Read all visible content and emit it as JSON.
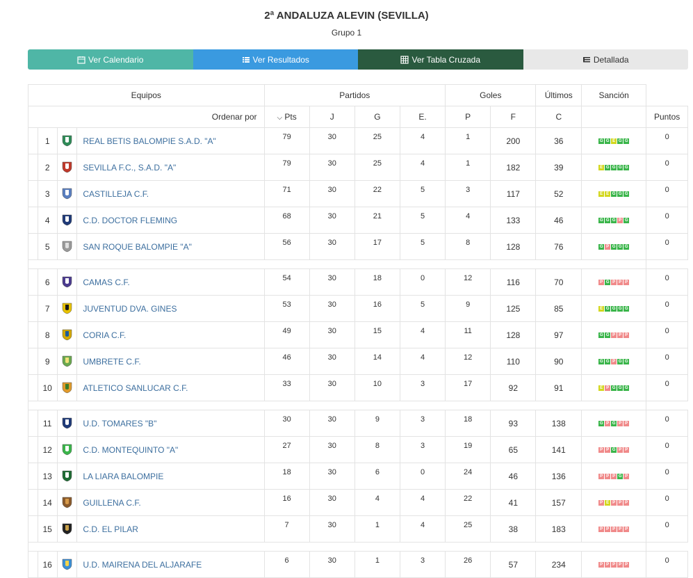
{
  "header": {
    "title": "2ª ANDALUZA ALEVIN (SEVILLA)",
    "subtitle": "Grupo 1"
  },
  "buttons": {
    "calendar": "Ver Calendario",
    "results": "Ver Resultados",
    "crosstable": "Ver Tabla Cruzada",
    "detailed": "Detallada"
  },
  "table": {
    "group_headers": {
      "equipos": "Equipos",
      "partidos": "Partidos",
      "goles": "Goles",
      "ultimos": "Últimos",
      "sancion": "Sanción"
    },
    "sort_label": "Ordenar por",
    "columns": {
      "pts": "Pts",
      "j": "J",
      "g": "G",
      "e": "E.",
      "p": "P",
      "f": "F",
      "c": "C",
      "puntos": "Puntos"
    },
    "rows": [
      {
        "pos": "1",
        "name": "REAL BETIS BALOMPIE S.A.D. \"A\"",
        "pts": "79",
        "j": "30",
        "g": "25",
        "e": "4",
        "p": "1",
        "f": "200",
        "c": "36",
        "last": "GGEGG",
        "san": "0",
        "shield": "green-white"
      },
      {
        "pos": "2",
        "name": "SEVILLA F.C., S.A.D. \"A\"",
        "pts": "79",
        "j": "30",
        "g": "25",
        "e": "4",
        "p": "1",
        "f": "182",
        "c": "39",
        "last": "EGGGG",
        "san": "0",
        "shield": "red-white"
      },
      {
        "pos": "3",
        "name": "CASTILLEJA C.F.",
        "pts": "71",
        "j": "30",
        "g": "22",
        "e": "5",
        "p": "3",
        "f": "117",
        "c": "52",
        "last": "EEGGG",
        "san": "0",
        "shield": "blue-white"
      },
      {
        "pos": "4",
        "name": "C.D. DOCTOR FLEMING",
        "pts": "68",
        "j": "30",
        "g": "21",
        "e": "5",
        "p": "4",
        "f": "133",
        "c": "46",
        "last": "GGGPG",
        "san": "0",
        "shield": "navy"
      },
      {
        "pos": "5",
        "name": "SAN ROQUE BALOMPIE \"A\"",
        "pts": "56",
        "j": "30",
        "g": "17",
        "e": "5",
        "p": "8",
        "f": "128",
        "c": "76",
        "last": "GPGGG",
        "san": "0",
        "shield": "gray"
      },
      {
        "sep": true
      },
      {
        "pos": "6",
        "name": "CAMAS C.F.",
        "pts": "54",
        "j": "30",
        "g": "18",
        "e": "0",
        "p": "12",
        "f": "116",
        "c": "70",
        "last": "PGPPP",
        "san": "0",
        "shield": "purple"
      },
      {
        "pos": "7",
        "name": "JUVENTUD DVA. GINES",
        "pts": "53",
        "j": "30",
        "g": "16",
        "e": "5",
        "p": "9",
        "f": "125",
        "c": "85",
        "last": "EGGGG",
        "san": "0",
        "shield": "yellow"
      },
      {
        "pos": "8",
        "name": "CORIA C.F.",
        "pts": "49",
        "j": "30",
        "g": "15",
        "e": "4",
        "p": "11",
        "f": "128",
        "c": "97",
        "last": "GGPPP",
        "san": "0",
        "shield": "gold"
      },
      {
        "pos": "9",
        "name": "UMBRETE C.F.",
        "pts": "46",
        "j": "30",
        "g": "14",
        "e": "4",
        "p": "12",
        "f": "110",
        "c": "90",
        "last": "GGPGG",
        "san": "0",
        "shield": "greenyellow"
      },
      {
        "pos": "10",
        "name": "ATLETICO SANLUCAR C.F.",
        "pts": "33",
        "j": "30",
        "g": "10",
        "e": "3",
        "p": "17",
        "f": "92",
        "c": "91",
        "last": "EPGGG",
        "san": "0",
        "shield": "orange"
      },
      {
        "sep": true
      },
      {
        "pos": "11",
        "name": "U.D. TOMARES \"B\"",
        "pts": "30",
        "j": "30",
        "g": "9",
        "e": "3",
        "p": "18",
        "f": "93",
        "c": "138",
        "last": "GPGPP",
        "san": "0",
        "shield": "navy"
      },
      {
        "pos": "12",
        "name": "C.D. MONTEQUINTO \"A\"",
        "pts": "27",
        "j": "30",
        "g": "8",
        "e": "3",
        "p": "19",
        "f": "65",
        "c": "141",
        "last": "PPGPP",
        "san": "0",
        "shield": "green"
      },
      {
        "pos": "13",
        "name": "LA LIARA BALOMPIE",
        "pts": "18",
        "j": "30",
        "g": "6",
        "e": "0",
        "p": "24",
        "f": "46",
        "c": "136",
        "last": "PPPGP",
        "san": "0",
        "shield": "darkgreen"
      },
      {
        "pos": "14",
        "name": "GUILLENA C.F.",
        "pts": "16",
        "j": "30",
        "g": "4",
        "e": "4",
        "p": "22",
        "f": "41",
        "c": "157",
        "last": "PEPPP",
        "san": "0",
        "shield": "brown"
      },
      {
        "pos": "15",
        "name": "C.D. EL PILAR",
        "pts": "7",
        "j": "30",
        "g": "1",
        "e": "4",
        "p": "25",
        "f": "38",
        "c": "183",
        "last": "PPPPP",
        "san": "0",
        "shield": "black"
      },
      {
        "sep": true
      },
      {
        "pos": "16",
        "name": "U.D. MAIRENA DEL ALJARAFE",
        "pts": "6",
        "j": "30",
        "g": "1",
        "e": "3",
        "p": "26",
        "f": "57",
        "c": "234",
        "last": "PPPPP",
        "san": "0",
        "shield": "skyblue"
      }
    ]
  },
  "colors": {
    "win": "#3ab54a",
    "draw": "#d3d71f",
    "loss": "#f08a8a",
    "link": "#3d6f9f"
  }
}
